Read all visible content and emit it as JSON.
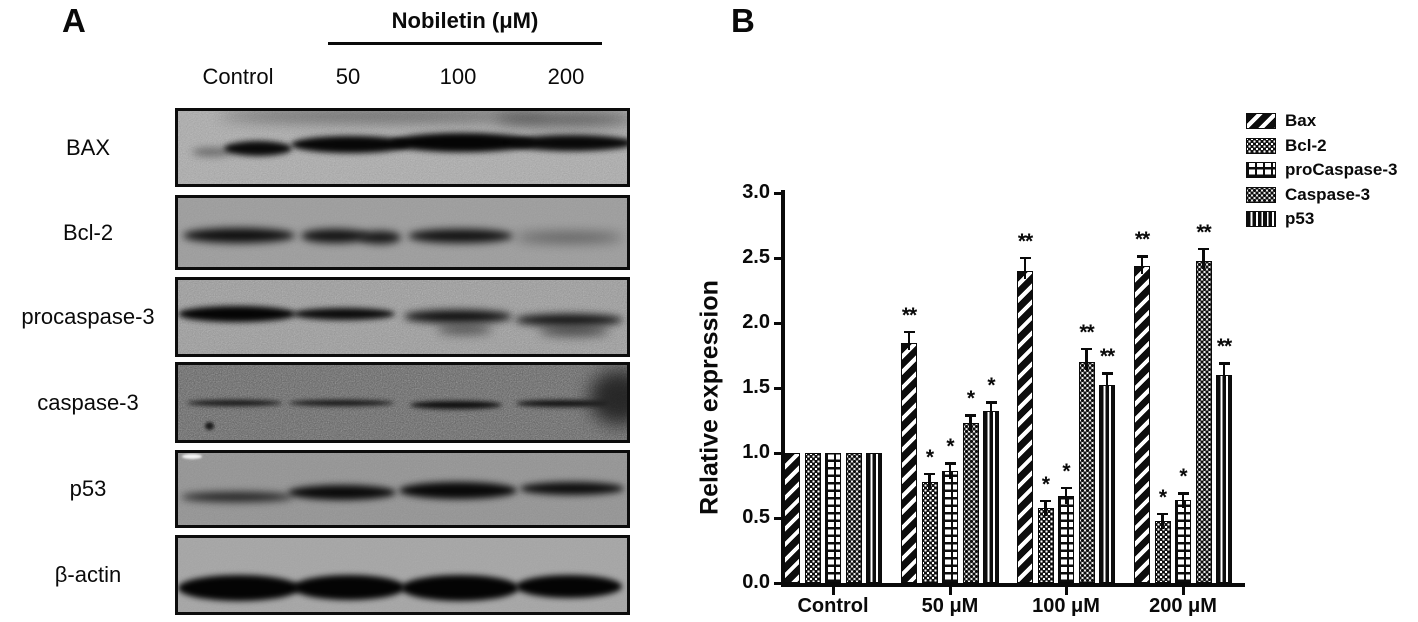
{
  "figure": {
    "panel_a_letter": "A",
    "panel_b_letter": "B"
  },
  "panel_a": {
    "treatment_title": "Nobiletin (μM)",
    "lane_labels": [
      "Control",
      "50",
      "100",
      "200"
    ],
    "blot_rows": [
      "BAX",
      "Bcl-2",
      "procaspase-3",
      "caspase-3",
      "p53",
      "β-actin"
    ]
  },
  "panel_b": {
    "ylabel": "Relative expression",
    "yticks": [
      "0.0",
      "0.5",
      "1.0",
      "1.5",
      "2.0",
      "2.5",
      "3.0"
    ],
    "legend": [
      "Bax",
      "Bcl-2",
      "proCaspase-3",
      "Caspase-3",
      "p53"
    ]
  },
  "chart_data": {
    "type": "bar",
    "title": "",
    "xlabel": "",
    "ylabel": "Relative expression",
    "ylim": [
      0,
      3.0
    ],
    "ytick_step": 0.5,
    "grid": false,
    "legend_position": "upper-right",
    "categories": [
      "Control",
      "50 μM",
      "100 μM",
      "200 μM"
    ],
    "series": [
      {
        "name": "Bax",
        "pattern": "diagonal-stripes",
        "values": [
          1.0,
          1.85,
          2.4,
          2.44
        ],
        "errors": [
          0,
          0.09,
          0.11,
          0.08
        ],
        "significance": [
          "",
          "**",
          "**",
          "**"
        ]
      },
      {
        "name": "Bcl-2",
        "pattern": "white-dots-on-black",
        "values": [
          1.0,
          0.78,
          0.58,
          0.48
        ],
        "errors": [
          0,
          0.07,
          0.06,
          0.06
        ],
        "significance": [
          "",
          "*",
          "*",
          "*"
        ]
      },
      {
        "name": "proCaspase-3",
        "pattern": "bricks",
        "values": [
          1.0,
          0.86,
          0.67,
          0.64
        ],
        "errors": [
          0,
          0.07,
          0.07,
          0.06
        ],
        "significance": [
          "",
          "*",
          "*",
          "*"
        ]
      },
      {
        "name": "Caspase-3",
        "pattern": "black-dots-on-white",
        "values": [
          1.0,
          1.23,
          1.7,
          2.48
        ],
        "errors": [
          0,
          0.07,
          0.11,
          0.1
        ],
        "significance": [
          "",
          "*",
          "**",
          "**"
        ]
      },
      {
        "name": "p53",
        "pattern": "vertical-stripes",
        "values": [
          1.0,
          1.32,
          1.52,
          1.6
        ],
        "errors": [
          0,
          0.08,
          0.1,
          0.1
        ],
        "significance": [
          "",
          "*",
          "**",
          "**"
        ]
      }
    ]
  }
}
